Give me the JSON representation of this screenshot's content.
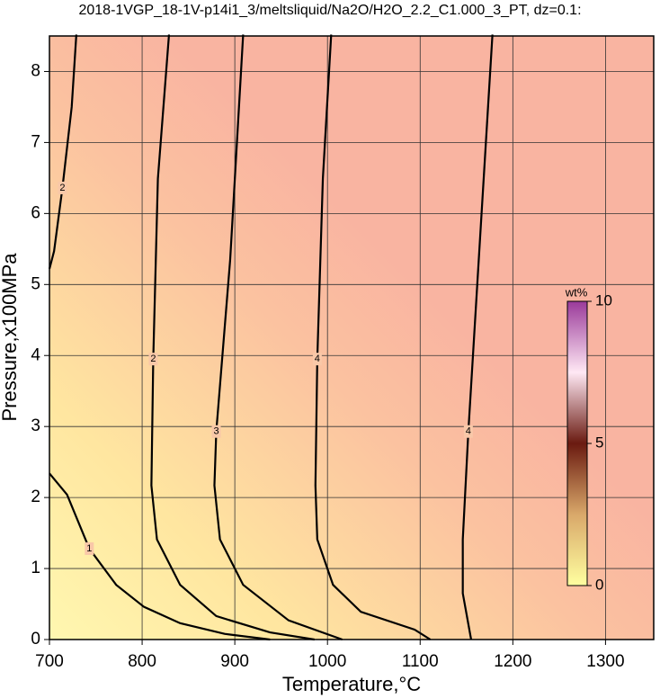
{
  "chart_data": {
    "type": "contour",
    "title": "2018-1VGP_18-1V-p14i1_3/meltsliquid/Na2O/H2O_2.2_C1.000_3_PT, dz=0.1:",
    "x_label": "Temperature,°C",
    "y_label": "Pressure,x100MPa",
    "xlim": [
      700,
      1352
    ],
    "ylim": [
      0,
      8.5
    ],
    "xticks": [
      700,
      800,
      900,
      1000,
      1100,
      1200,
      1300
    ],
    "yticks": [
      0,
      1,
      2,
      3,
      4,
      5,
      6,
      7,
      8
    ],
    "grid": true,
    "series": [
      {
        "level": 1,
        "color": "#000000",
        "x": [
          700,
          719,
          743,
          772,
          802,
          841,
          889,
          938
        ],
        "y": [
          2.34,
          2.04,
          1.28,
          0.77,
          0.46,
          0.23,
          0.08,
          0
        ]
      },
      {
        "level": 2,
        "color": "#000000",
        "x": [
          729,
          724,
          714,
          705,
          700
        ],
        "y": [
          8.52,
          7.5,
          6.36,
          5.47,
          5.22
        ]
      },
      {
        "level": 2,
        "color": "#000000",
        "x": [
          829,
          817,
          812,
          810,
          816,
          841,
          880,
          938,
          986
        ],
        "y": [
          8.52,
          6.49,
          3.95,
          2.17,
          1.41,
          0.77,
          0.33,
          0.1,
          0
        ]
      },
      {
        "level": 3,
        "color": "#000000",
        "x": [
          909,
          895,
          880,
          878,
          884,
          909,
          958,
          1016
        ],
        "y": [
          8.52,
          5.35,
          2.93,
          2.17,
          1.41,
          0.77,
          0.27,
          0
        ]
      },
      {
        "level": 4,
        "color": "#000000",
        "x": [
          1004,
          995,
          989,
          987,
          989,
          1006,
          1036,
          1094,
          1111
        ],
        "y": [
          8.52,
          6.49,
          3.95,
          2.17,
          1.41,
          0.77,
          0.39,
          0.14,
          0
        ]
      },
      {
        "level": 4,
        "color": "#000000",
        "x": [
          1178,
          1165,
          1152,
          1146,
          1146,
          1155
        ],
        "y": [
          8.52,
          5.73,
          2.93,
          1.41,
          0.65,
          0
        ]
      }
    ],
    "colorbar": {
      "label": "wt%",
      "clim": [
        0,
        10
      ],
      "ticks": [
        0,
        5,
        10
      ]
    }
  }
}
